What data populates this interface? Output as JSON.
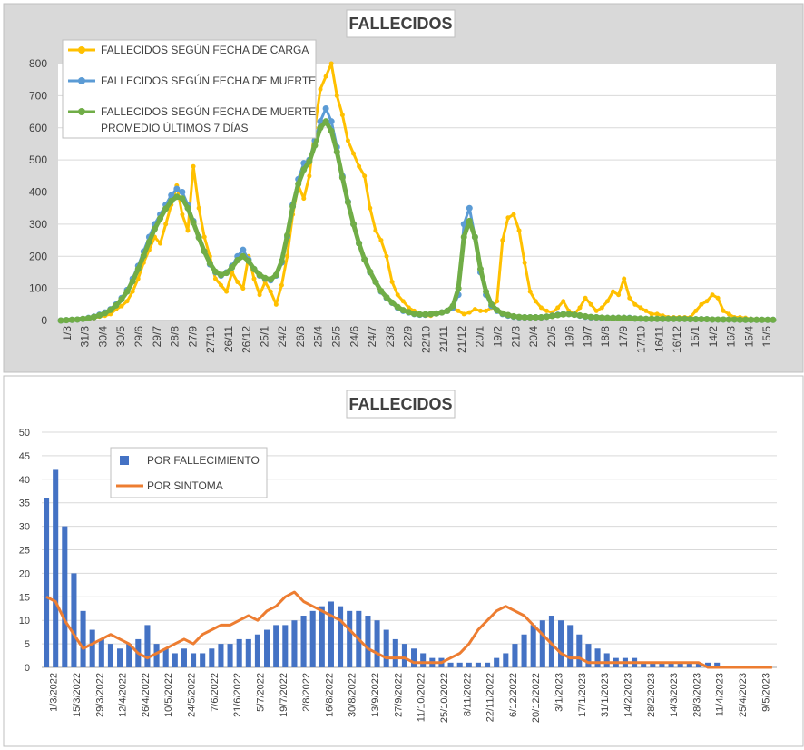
{
  "chart_data": [
    {
      "type": "line",
      "title": "FALLECIDOS",
      "ylim": [
        0,
        800
      ],
      "yticks": [
        0,
        100,
        200,
        300,
        400,
        500,
        600,
        700,
        800
      ],
      "x_tick_labels": [
        "1/3",
        "31/3",
        "30/4",
        "30/5",
        "29/6",
        "29/7",
        "28/8",
        "27/9",
        "27/10",
        "26/11",
        "26/12",
        "25/1",
        "24/2",
        "26/3",
        "25/4",
        "25/5",
        "24/6",
        "24/7",
        "23/8",
        "22/9",
        "22/10",
        "21/11",
        "21/12",
        "20/1",
        "19/2",
        "21/3",
        "20/4",
        "20/5",
        "19/6",
        "19/7",
        "18/8",
        "17/9",
        "17/10",
        "16/11",
        "16/12",
        "15/1",
        "14/2",
        "16/3",
        "15/4",
        "15/5"
      ],
      "grid": true,
      "legend_position": "top-left",
      "series": [
        {
          "name": "FALLECIDOS SEGÚN FECHA DE CARGA",
          "color": "#FFC000",
          "values": [
            0,
            1,
            2,
            3,
            4,
            5,
            8,
            12,
            15,
            20,
            35,
            45,
            60,
            90,
            130,
            180,
            220,
            260,
            240,
            300,
            360,
            420,
            330,
            280,
            480,
            350,
            260,
            200,
            130,
            110,
            90,
            150,
            120,
            100,
            200,
            130,
            80,
            120,
            90,
            50,
            110,
            200,
            330,
            420,
            380,
            450,
            600,
            720,
            760,
            800,
            700,
            640,
            560,
            520,
            480,
            450,
            350,
            280,
            250,
            200,
            120,
            80,
            60,
            40,
            30,
            20,
            15,
            15,
            20,
            25,
            30,
            40,
            30,
            20,
            25,
            35,
            30,
            30,
            40,
            60,
            250,
            320,
            330,
            280,
            180,
            90,
            60,
            40,
            30,
            25,
            40,
            60,
            30,
            20,
            40,
            70,
            50,
            30,
            40,
            60,
            90,
            80,
            130,
            70,
            50,
            40,
            30,
            20,
            20,
            15,
            10,
            10,
            10,
            10,
            10,
            30,
            50,
            60,
            80,
            70,
            30,
            20,
            10,
            10,
            8,
            5,
            5,
            3,
            2,
            2
          ]
        },
        {
          "name": "FALLECIDOS SEGÚN FECHA DE MUERTE",
          "color": "#5B9BD5",
          "values": [
            0,
            1,
            2,
            3,
            5,
            8,
            12,
            18,
            25,
            35,
            50,
            70,
            95,
            130,
            170,
            215,
            260,
            300,
            330,
            360,
            390,
            410,
            400,
            360,
            310,
            260,
            215,
            175,
            150,
            140,
            150,
            170,
            200,
            220,
            190,
            160,
            140,
            130,
            125,
            140,
            180,
            260,
            360,
            440,
            490,
            500,
            560,
            620,
            660,
            620,
            540,
            450,
            370,
            300,
            240,
            190,
            150,
            120,
            90,
            70,
            55,
            40,
            30,
            25,
            20,
            18,
            18,
            20,
            22,
            25,
            30,
            40,
            80,
            300,
            350,
            260,
            150,
            80,
            45,
            30,
            20,
            15,
            12,
            10,
            10,
            10,
            10,
            10,
            12,
            15,
            18,
            20,
            20,
            18,
            15,
            12,
            10,
            10,
            8,
            8,
            8,
            8,
            8,
            8,
            6,
            6,
            5,
            5,
            5,
            5,
            5,
            5,
            5,
            5,
            4,
            4,
            4,
            4,
            3,
            3,
            3,
            3,
            3,
            2,
            2,
            2,
            2,
            2,
            2,
            2
          ]
        },
        {
          "name": "FALLECIDOS SEGÚN FECHA DE MUERTE PROMEDIO ÚLTIMOS 7 DÍAS",
          "color": "#70AD47",
          "values": [
            0,
            1,
            2,
            3,
            5,
            7,
            11,
            16,
            23,
            33,
            47,
            66,
            90,
            122,
            160,
            202,
            245,
            285,
            318,
            348,
            372,
            385,
            380,
            350,
            305,
            258,
            215,
            178,
            152,
            142,
            148,
            165,
            188,
            200,
            185,
            160,
            142,
            132,
            128,
            142,
            185,
            265,
            355,
            425,
            470,
            495,
            545,
            600,
            620,
            590,
            525,
            445,
            368,
            300,
            240,
            190,
            152,
            120,
            92,
            72,
            56,
            42,
            32,
            26,
            21,
            19,
            19,
            20,
            22,
            25,
            30,
            45,
            100,
            260,
            310,
            260,
            160,
            90,
            50,
            32,
            22,
            17,
            13,
            11,
            10,
            10,
            10,
            10,
            12,
            14,
            17,
            19,
            20,
            18,
            16,
            13,
            11,
            10,
            9,
            8,
            8,
            8,
            8,
            7,
            6,
            6,
            5,
            5,
            5,
            5,
            5,
            5,
            5,
            5,
            4,
            4,
            4,
            4,
            3,
            3,
            3,
            3,
            3,
            2,
            2,
            2,
            2,
            2,
            2,
            2
          ]
        }
      ]
    },
    {
      "type": "bar",
      "title": "FALLECIDOS",
      "ylim": [
        0,
        50
      ],
      "yticks": [
        0,
        5,
        10,
        15,
        20,
        25,
        30,
        35,
        40,
        45,
        50
      ],
      "x_tick_labels": [
        "1/3/2022",
        "15/3/2022",
        "29/3/2022",
        "12/4/2022",
        "26/4/2022",
        "10/5/2022",
        "24/5/2022",
        "7/6/2022",
        "21/6/2022",
        "5/7/2022",
        "19/7/2022",
        "2/8/2022",
        "16/8/2022",
        "30/8/2022",
        "13/9/2022",
        "27/9/2022",
        "11/10/2022",
        "25/10/2022",
        "8/11/2022",
        "22/11/2022",
        "6/12/2022",
        "20/12/2022",
        "3/1/2023",
        "17/1/2023",
        "31/1/2023",
        "14/2/2023",
        "28/2/2023",
        "14/3/2023",
        "28/3/2023",
        "11/4/2023",
        "25/4/2023",
        "9/5/2023"
      ],
      "grid": true,
      "legend_position": "top-left",
      "series": [
        {
          "name": "POR FALLECIMIENTO",
          "color": "#4472C4",
          "style": "bar",
          "values": [
            36,
            42,
            30,
            20,
            12,
            8,
            6,
            5,
            4,
            5,
            6,
            9,
            5,
            4,
            3,
            4,
            3,
            3,
            4,
            5,
            5,
            6,
            6,
            7,
            8,
            9,
            9,
            10,
            11,
            12,
            13,
            14,
            13,
            12,
            12,
            11,
            10,
            8,
            6,
            5,
            4,
            3,
            2,
            2,
            1,
            1,
            1,
            1,
            1,
            2,
            3,
            5,
            7,
            9,
            10,
            11,
            10,
            9,
            7,
            5,
            4,
            3,
            2,
            2,
            2,
            1,
            1,
            1,
            1,
            1,
            1,
            1,
            1,
            1,
            0,
            0,
            0,
            0,
            0,
            0
          ]
        },
        {
          "name": "POR SINTOMA",
          "color": "#ED7D31",
          "style": "line",
          "values": [
            15,
            14,
            10,
            7,
            4,
            5,
            6,
            7,
            6,
            5,
            3,
            2,
            3,
            4,
            5,
            6,
            5,
            7,
            8,
            9,
            9,
            10,
            11,
            10,
            12,
            13,
            15,
            16,
            14,
            13,
            12,
            11,
            10,
            8,
            6,
            4,
            3,
            2,
            2,
            2,
            1,
            1,
            1,
            1,
            2,
            3,
            5,
            8,
            10,
            12,
            13,
            12,
            11,
            9,
            7,
            5,
            3,
            2,
            2,
            1,
            1,
            1,
            1,
            1,
            1,
            1,
            1,
            1,
            1,
            1,
            1,
            1,
            0,
            0,
            0,
            0,
            0,
            0,
            0,
            0
          ]
        }
      ]
    }
  ]
}
